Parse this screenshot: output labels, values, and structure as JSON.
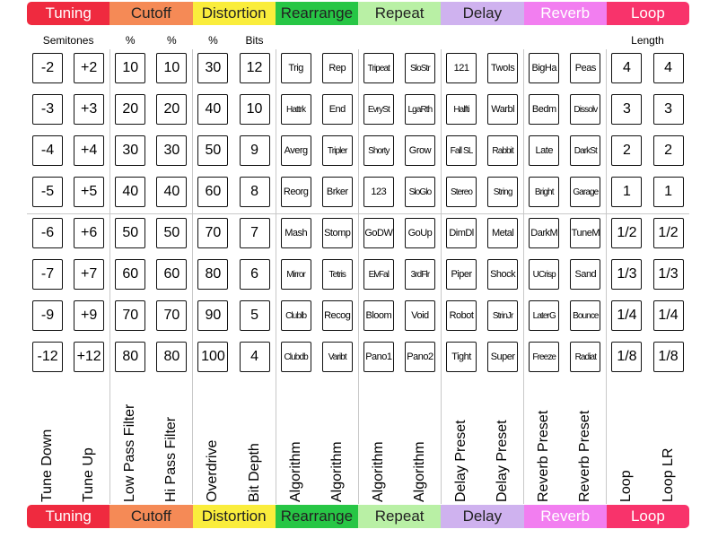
{
  "categories": [
    {
      "label": "Tuning",
      "color": "#ef2a3f",
      "text_color": "#ffffff",
      "span": 2
    },
    {
      "label": "Cutoff",
      "color": "#f58a56",
      "text_color": "#222222",
      "span": 2
    },
    {
      "label": "Distortion",
      "color": "#faed3c",
      "text_color": "#222222",
      "span": 2
    },
    {
      "label": "Rearrange",
      "color": "#27c645",
      "text_color": "#222222",
      "span": 2
    },
    {
      "label": "Repeat",
      "color": "#b9f0a5",
      "text_color": "#222222",
      "span": 2
    },
    {
      "label": "Delay",
      "color": "#cfb2ef",
      "text_color": "#222222",
      "span": 2
    },
    {
      "label": "Reverb",
      "color": "#f27ef0",
      "text_color": "#ffffff",
      "span": 2
    },
    {
      "label": "Loop",
      "color": "#f8336b",
      "text_color": "#ffffff",
      "span": 2
    }
  ],
  "subheaders": [
    {
      "label": "Semitones",
      "col": 0.5
    },
    {
      "label": "%",
      "col": 2
    },
    {
      "label": "%",
      "col": 3
    },
    {
      "label": "%",
      "col": 4
    },
    {
      "label": "Bits",
      "col": 5
    },
    {
      "label": "Length",
      "col": 14.5
    }
  ],
  "columns": [
    {
      "label": "Tune Down",
      "type": "num",
      "values": [
        "-2",
        "-3",
        "-4",
        "-5",
        "-6",
        "-7",
        "-9",
        "-12"
      ]
    },
    {
      "label": "Tune Up",
      "type": "num",
      "values": [
        "+2",
        "+3",
        "+4",
        "+5",
        "+6",
        "+7",
        "+9",
        "+12"
      ]
    },
    {
      "label": "Low Pass Filter",
      "type": "num",
      "values": [
        "10",
        "20",
        "30",
        "40",
        "50",
        "60",
        "70",
        "80"
      ]
    },
    {
      "label": "Hi Pass Filter",
      "type": "num",
      "values": [
        "10",
        "20",
        "30",
        "40",
        "50",
        "60",
        "70",
        "80"
      ]
    },
    {
      "label": "Overdrive",
      "type": "num",
      "values": [
        "30",
        "40",
        "50",
        "60",
        "70",
        "80",
        "90",
        "100"
      ]
    },
    {
      "label": "Bit Depth",
      "type": "num",
      "values": [
        "12",
        "10",
        "9",
        "8",
        "7",
        "6",
        "5",
        "4"
      ]
    },
    {
      "label": "Algorithm",
      "type": "txt",
      "values": [
        "Trig",
        "Hattrk",
        "Averg",
        "Reorg",
        "Mash",
        "Mirror",
        "Clublb",
        "Clubdb"
      ]
    },
    {
      "label": "Algorithm",
      "type": "txt",
      "values": [
        "Rep",
        "End",
        "Tripler",
        "Brker",
        "Stomp",
        "Tetris",
        "Recog",
        "Varibt"
      ]
    },
    {
      "label": "Algorithm",
      "type": "txt",
      "values": [
        "Tripeat",
        "EvrySt",
        "Shorty",
        "123",
        "GoDW",
        "ElvFal",
        "Bloom",
        "Pano1"
      ]
    },
    {
      "label": "Algorithm",
      "type": "txt",
      "values": [
        "SloStr",
        "LgaRth",
        "Grow",
        "SloGlo",
        "GoUp",
        "3rdFlr",
        "Void",
        "Pano2"
      ]
    },
    {
      "label": "Delay Preset",
      "type": "txt",
      "values": [
        "121",
        "Halfti",
        "Fall SL",
        "Stereo",
        "DimDl",
        "Piper",
        "Robot",
        "Tight"
      ]
    },
    {
      "label": "Delay Preset",
      "type": "txt",
      "values": [
        "TwoIs",
        "Warbl",
        "Rabbit",
        "String",
        "Metal",
        "Shock",
        "StrinJr",
        "Super"
      ]
    },
    {
      "label": "Reverb Preset",
      "type": "txt",
      "values": [
        "BigHa",
        "Bedm",
        "Late",
        "Bright",
        "DarkM",
        "UCrisp",
        "LaterG",
        "Freeze"
      ]
    },
    {
      "label": "Reverb Preset",
      "type": "txt",
      "values": [
        "Peas",
        "Dissolv",
        "DarkSt",
        "Garage",
        "TuneM",
        "Sand",
        "Bounce",
        "Radiat"
      ]
    },
    {
      "label": "Loop",
      "type": "num",
      "values": [
        "4",
        "3",
        "2",
        "1",
        "1/2",
        "1/3",
        "1/4",
        "1/8"
      ]
    },
    {
      "label": "Loop LR",
      "type": "num",
      "values": [
        "4",
        "3",
        "2",
        "1",
        "1/2",
        "1/3",
        "1/4",
        "1/8"
      ]
    }
  ]
}
